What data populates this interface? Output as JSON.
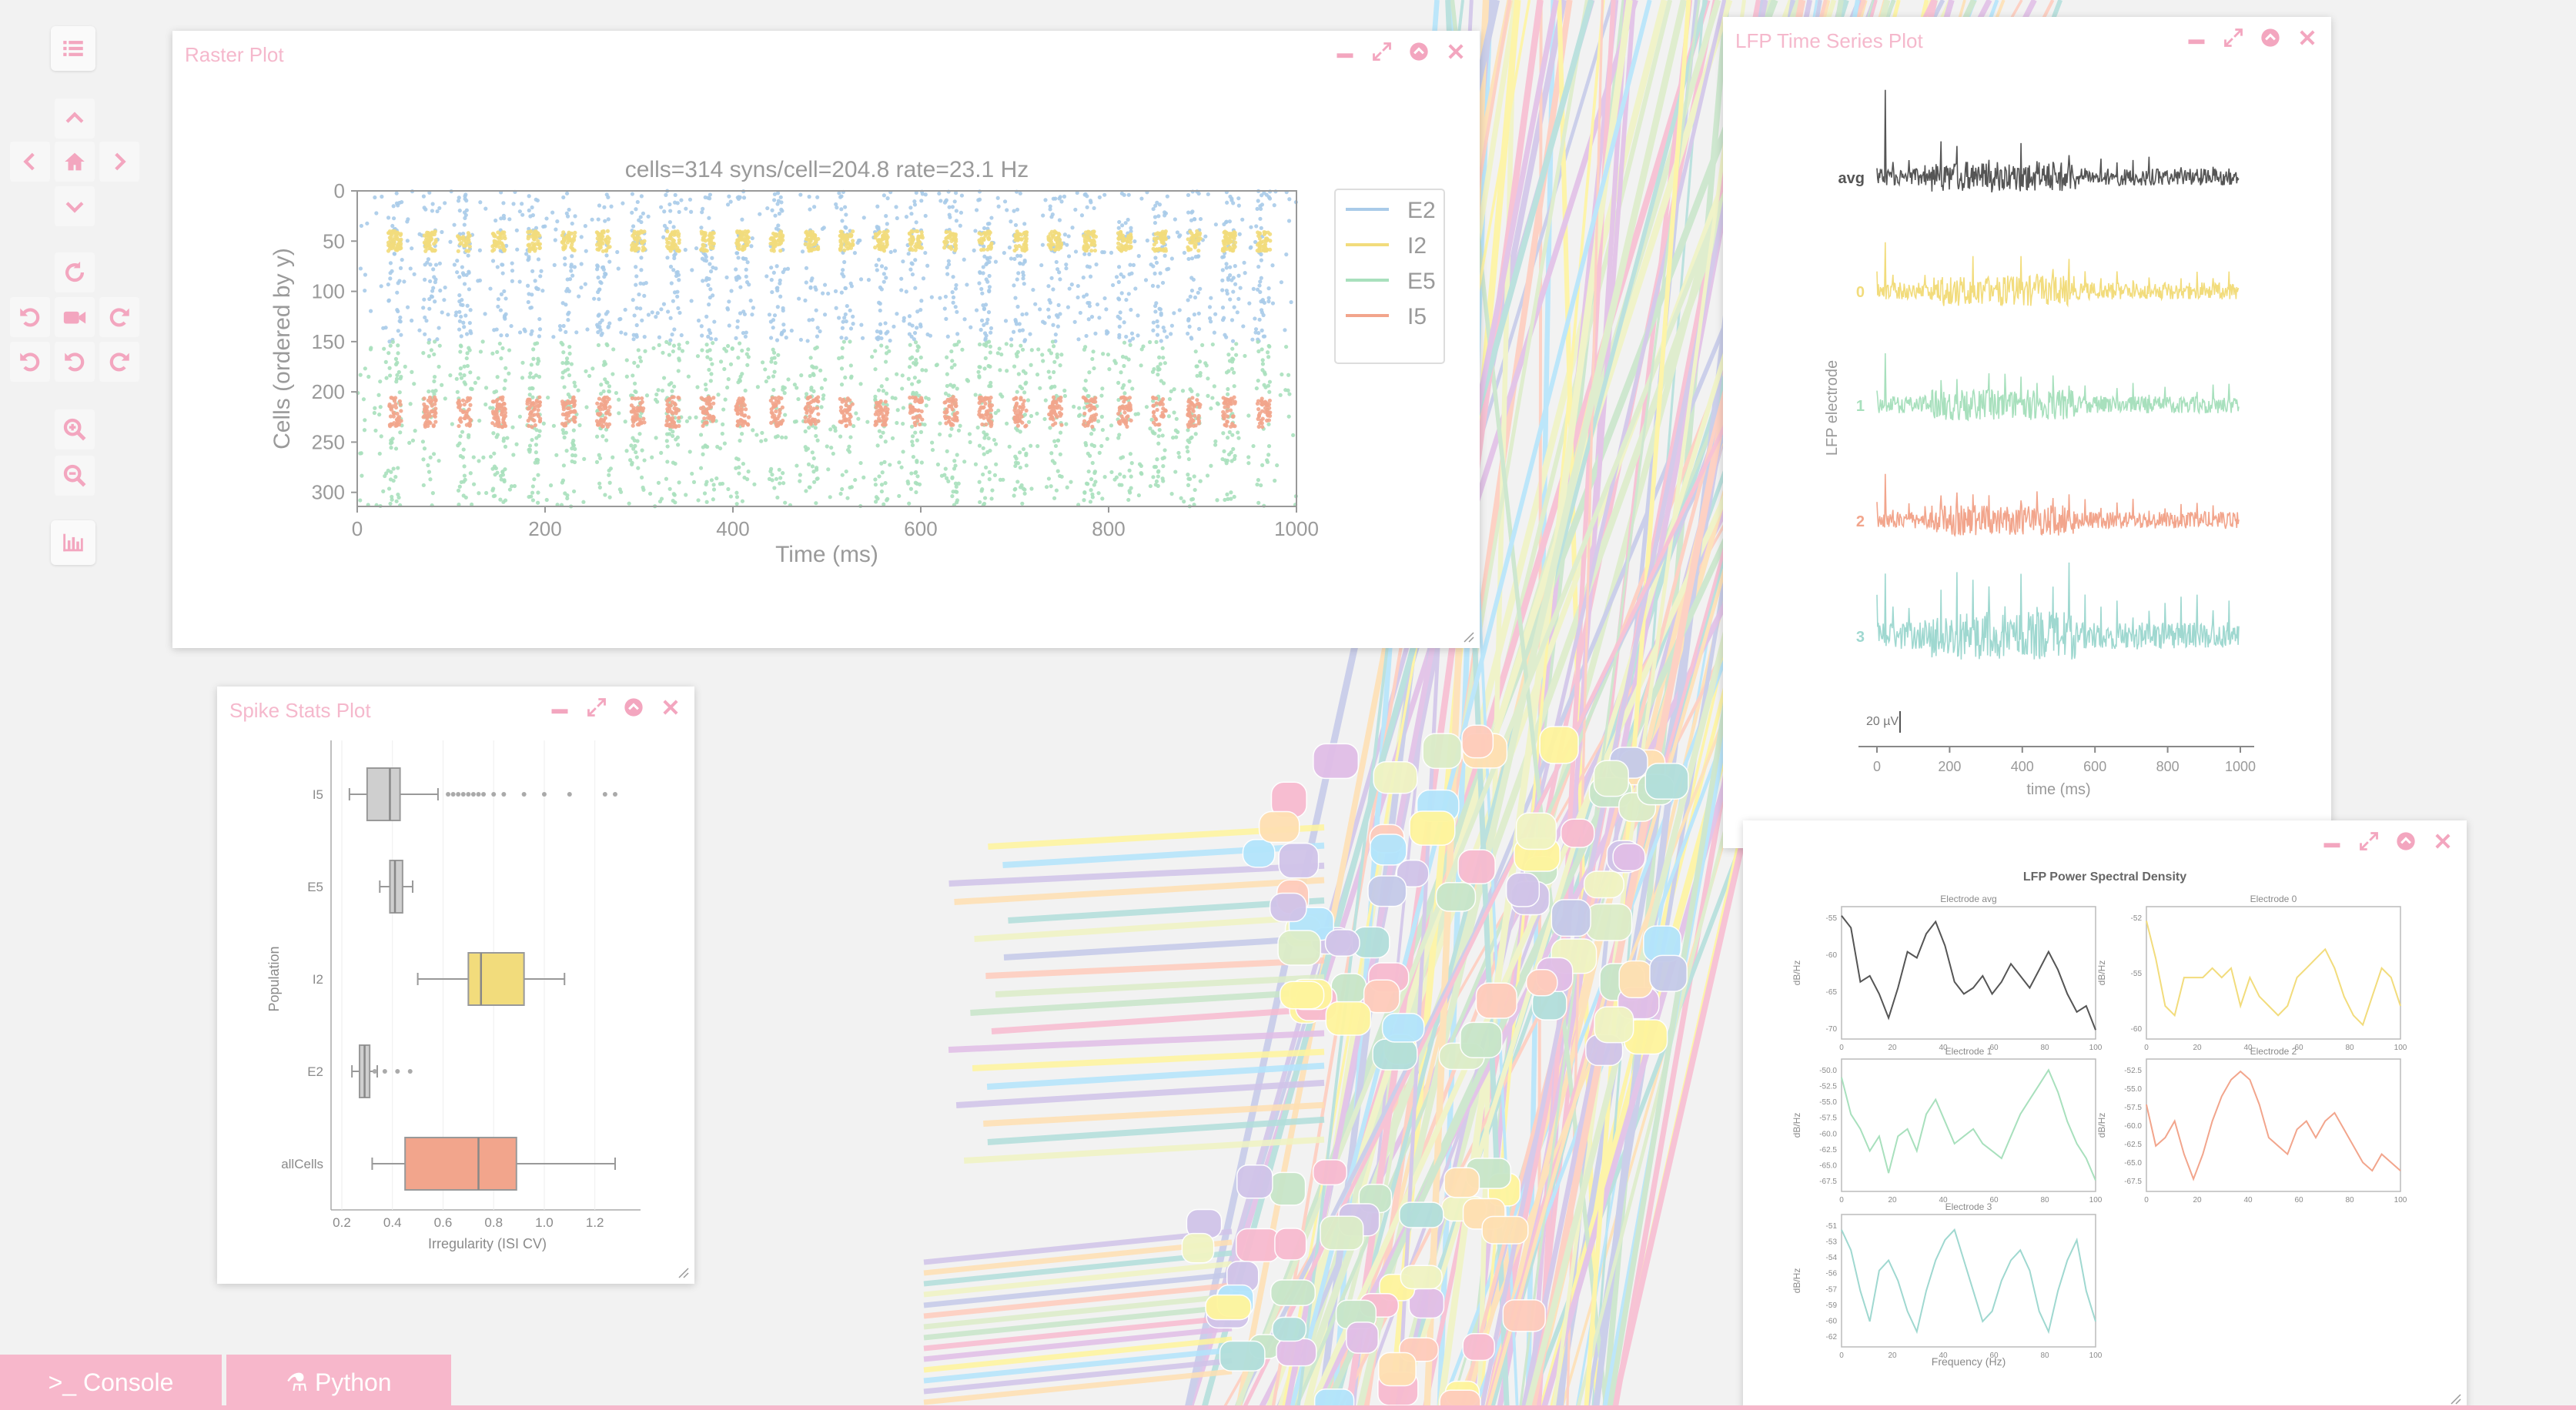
{
  "colors": {
    "accent": "#f7b7cb",
    "E2": "#a9cbe9",
    "I2": "#f2dc7c",
    "E5": "#a8e0bd",
    "I5": "#f2a58c",
    "lfp_avg": "#555555",
    "lfp_0": "#f2dc7c",
    "lfp_1": "#a8e0bd",
    "lfp_2": "#f2a58c",
    "lfp_3": "#9fd8d0"
  },
  "toolbar": {
    "icons": [
      "list-icon",
      "up-icon",
      "left-icon",
      "home-icon",
      "right-icon",
      "down-icon",
      "rotate-reset-icon",
      "rotate-left-icon",
      "camera-icon",
      "rotate-right-icon",
      "undo-icon",
      "undo-alt-icon",
      "redo-icon",
      "zoom-in-icon",
      "zoom-out-icon",
      "bar-chart-icon"
    ]
  },
  "windows": {
    "raster": {
      "title": "Raster Plot"
    },
    "lfp_ts": {
      "title": "LFP Time Series Plot"
    },
    "spike_stats": {
      "title": "Spike Stats Plot"
    },
    "psd": {
      "title": ""
    }
  },
  "bottom": {
    "console_label": ">_ Console",
    "python_label": "⚗ Python"
  },
  "chart_data": [
    {
      "type": "scatter",
      "title": "cells=314 syns/cell=204.8 rate=23.1 Hz",
      "xlabel": "Time (ms)",
      "ylabel": "Cells (ordered by y)",
      "xlim": [
        0,
        1000
      ],
      "ylim": [
        0,
        314
      ],
      "xticks": [
        0,
        200,
        400,
        600,
        800,
        1000
      ],
      "yticks": [
        0,
        50,
        100,
        150,
        200,
        250,
        300
      ],
      "legend_position": "right",
      "series": [
        {
          "name": "E2",
          "cells": [
            0,
            150
          ]
        },
        {
          "name": "I2",
          "cells": [
            40,
            60
          ]
        },
        {
          "name": "E5",
          "cells": [
            150,
            314
          ]
        },
        {
          "name": "I5",
          "cells": [
            205,
            235
          ]
        }
      ]
    },
    {
      "type": "line",
      "xlabel": "time (ms)",
      "ylabel": "LFP electrode",
      "xticks": [
        0,
        200,
        400,
        600,
        800,
        1000
      ],
      "xlim": [
        0,
        1000
      ],
      "scalebar": "20 µV",
      "series": [
        {
          "name": "avg"
        },
        {
          "name": "0"
        },
        {
          "name": "1"
        },
        {
          "name": "2"
        },
        {
          "name": "3"
        }
      ]
    },
    {
      "type": "box",
      "xlabel": "Irregularity (ISI CV)",
      "ylabel": "Population",
      "xlim": [
        0.2,
        1.35
      ],
      "xticks": [
        "0.2",
        "0.4",
        "0.6",
        "0.8",
        "1.0",
        "1.2"
      ],
      "categories": [
        "I5",
        "E5",
        "I2",
        "E2",
        "allCells"
      ],
      "boxes": [
        {
          "min": 0.23,
          "q1": 0.3,
          "median": 0.39,
          "q3": 0.43,
          "max": 0.58
        },
        {
          "min": 0.35,
          "q1": 0.39,
          "median": 0.41,
          "q3": 0.44,
          "max": 0.48
        },
        {
          "min": 0.5,
          "q1": 0.7,
          "median": 0.75,
          "q3": 0.92,
          "max": 1.08
        },
        {
          "min": 0.24,
          "q1": 0.27,
          "median": 0.29,
          "q3": 0.31,
          "max": 0.34
        },
        {
          "min": 0.32,
          "q1": 0.45,
          "median": 0.74,
          "q3": 0.89,
          "max": 1.28
        }
      ]
    },
    {
      "type": "line",
      "title": "LFP Power Spectral Density",
      "xlabel": "Frequency (Hz)",
      "ylabel": "dB/Hz",
      "xlim": [
        0,
        100
      ],
      "xticks": [
        "0",
        "20",
        "40",
        "60",
        "80",
        "100"
      ],
      "panels": [
        {
          "title": "Electrode avg",
          "yticks": [
            "-55",
            "-60",
            "-65",
            "-70"
          ],
          "y": [
            -53,
            -55,
            -64,
            -63,
            -66,
            -70,
            -65,
            -59,
            -60,
            -56,
            -54,
            -58,
            -64,
            -66,
            -65,
            -63,
            -66,
            -64,
            -61,
            -63,
            -65,
            -62,
            -59,
            -62,
            -66,
            -69,
            -68,
            -72
          ]
        },
        {
          "title": "Electrode 0",
          "yticks": [
            "-52",
            "-55",
            "-60"
          ],
          "y": [
            -51,
            -55,
            -60,
            -61,
            -57,
            -57,
            -57,
            -56,
            -57,
            -56,
            -60,
            -57,
            -59,
            -60,
            -61,
            -60,
            -57,
            -56,
            -55,
            -54,
            -56,
            -59,
            -61,
            -62,
            -59,
            -56,
            -57,
            -60
          ]
        },
        {
          "title": "Electrode 1",
          "yticks": [
            "-50.0",
            "-52.5",
            "-55.0",
            "-57.5",
            "-60.0",
            "-62.5",
            "-65.0",
            "-67.5"
          ],
          "y": [
            -53,
            -58,
            -60,
            -63,
            -61,
            -66,
            -61,
            -60,
            -63,
            -58,
            -56,
            -59,
            -62,
            -61,
            -60,
            -62,
            -63,
            -64,
            -61,
            -58,
            -56,
            -54,
            -52,
            -55,
            -59,
            -62,
            -64,
            -67
          ]
        },
        {
          "title": "Electrode 2",
          "yticks": [
            "-52.5",
            "-55.0",
            "-57.5",
            "-60.0",
            "-62.5",
            "-65.0",
            "-67.5"
          ],
          "y": [
            -58,
            -63,
            -62,
            -60,
            -64,
            -67,
            -64,
            -60,
            -57,
            -55,
            -54,
            -55,
            -58,
            -62,
            -63,
            -64,
            -61,
            -60,
            -62,
            -60,
            -59,
            -61,
            -63,
            -65,
            -66,
            -64,
            -65,
            -66
          ]
        },
        {
          "title": "Electrode 3",
          "yticks": [
            "-51",
            "-53",
            "-54",
            "-56",
            "-57",
            "-59",
            "-60",
            "-62"
          ],
          "y": [
            -52,
            -54,
            -58,
            -61,
            -56,
            -55,
            -57,
            -60,
            -62,
            -58,
            -55,
            -53,
            -52,
            -55,
            -58,
            -61,
            -60,
            -57,
            -55,
            -54,
            -56,
            -60,
            -62,
            -58,
            -55,
            -53,
            -58,
            -61
          ]
        }
      ]
    }
  ]
}
